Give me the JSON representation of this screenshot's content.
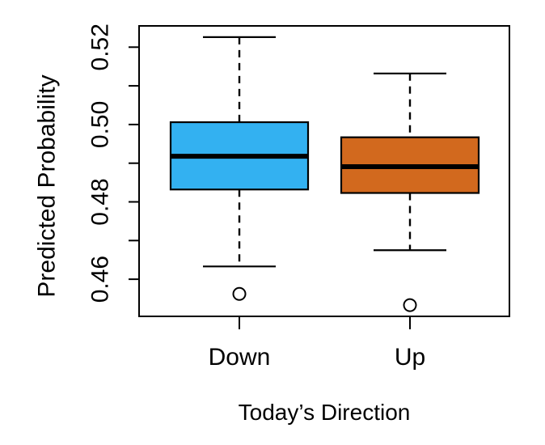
{
  "chart_data": {
    "type": "boxplot",
    "title": "",
    "xlabel": "Today’s Direction",
    "ylabel": "Predicted Probability",
    "categories": [
      "Down",
      "Up"
    ],
    "ylim": [
      0.4504,
      0.5255
    ],
    "yticks": [
      0.46,
      0.47,
      0.48,
      0.49,
      0.5,
      0.51,
      0.52
    ],
    "ytick_labeled": [
      {
        "value": 0.46,
        "label": "0.46"
      },
      {
        "value": 0.48,
        "label": "0.48"
      },
      {
        "value": 0.5,
        "label": "0.50"
      },
      {
        "value": 0.52,
        "label": "0.52"
      }
    ],
    "grid": false,
    "legend": "none",
    "orientation": "vertical",
    "stroke_color": "#000000",
    "background_color": "#ffffff",
    "series": [
      {
        "name": "Down",
        "fill_color": "#33B1F1",
        "whisker_low": 0.4633,
        "q1": 0.4832,
        "median": 0.4918,
        "q3": 0.5006,
        "whisker_high": 0.5226,
        "outliers": [
          0.4562
        ]
      },
      {
        "name": "Up",
        "fill_color": "#D2691E",
        "whisker_low": 0.4675,
        "q1": 0.4823,
        "median": 0.4891,
        "q3": 0.4967,
        "whisker_high": 0.5132,
        "outliers": [
          0.4533
        ]
      }
    ]
  }
}
